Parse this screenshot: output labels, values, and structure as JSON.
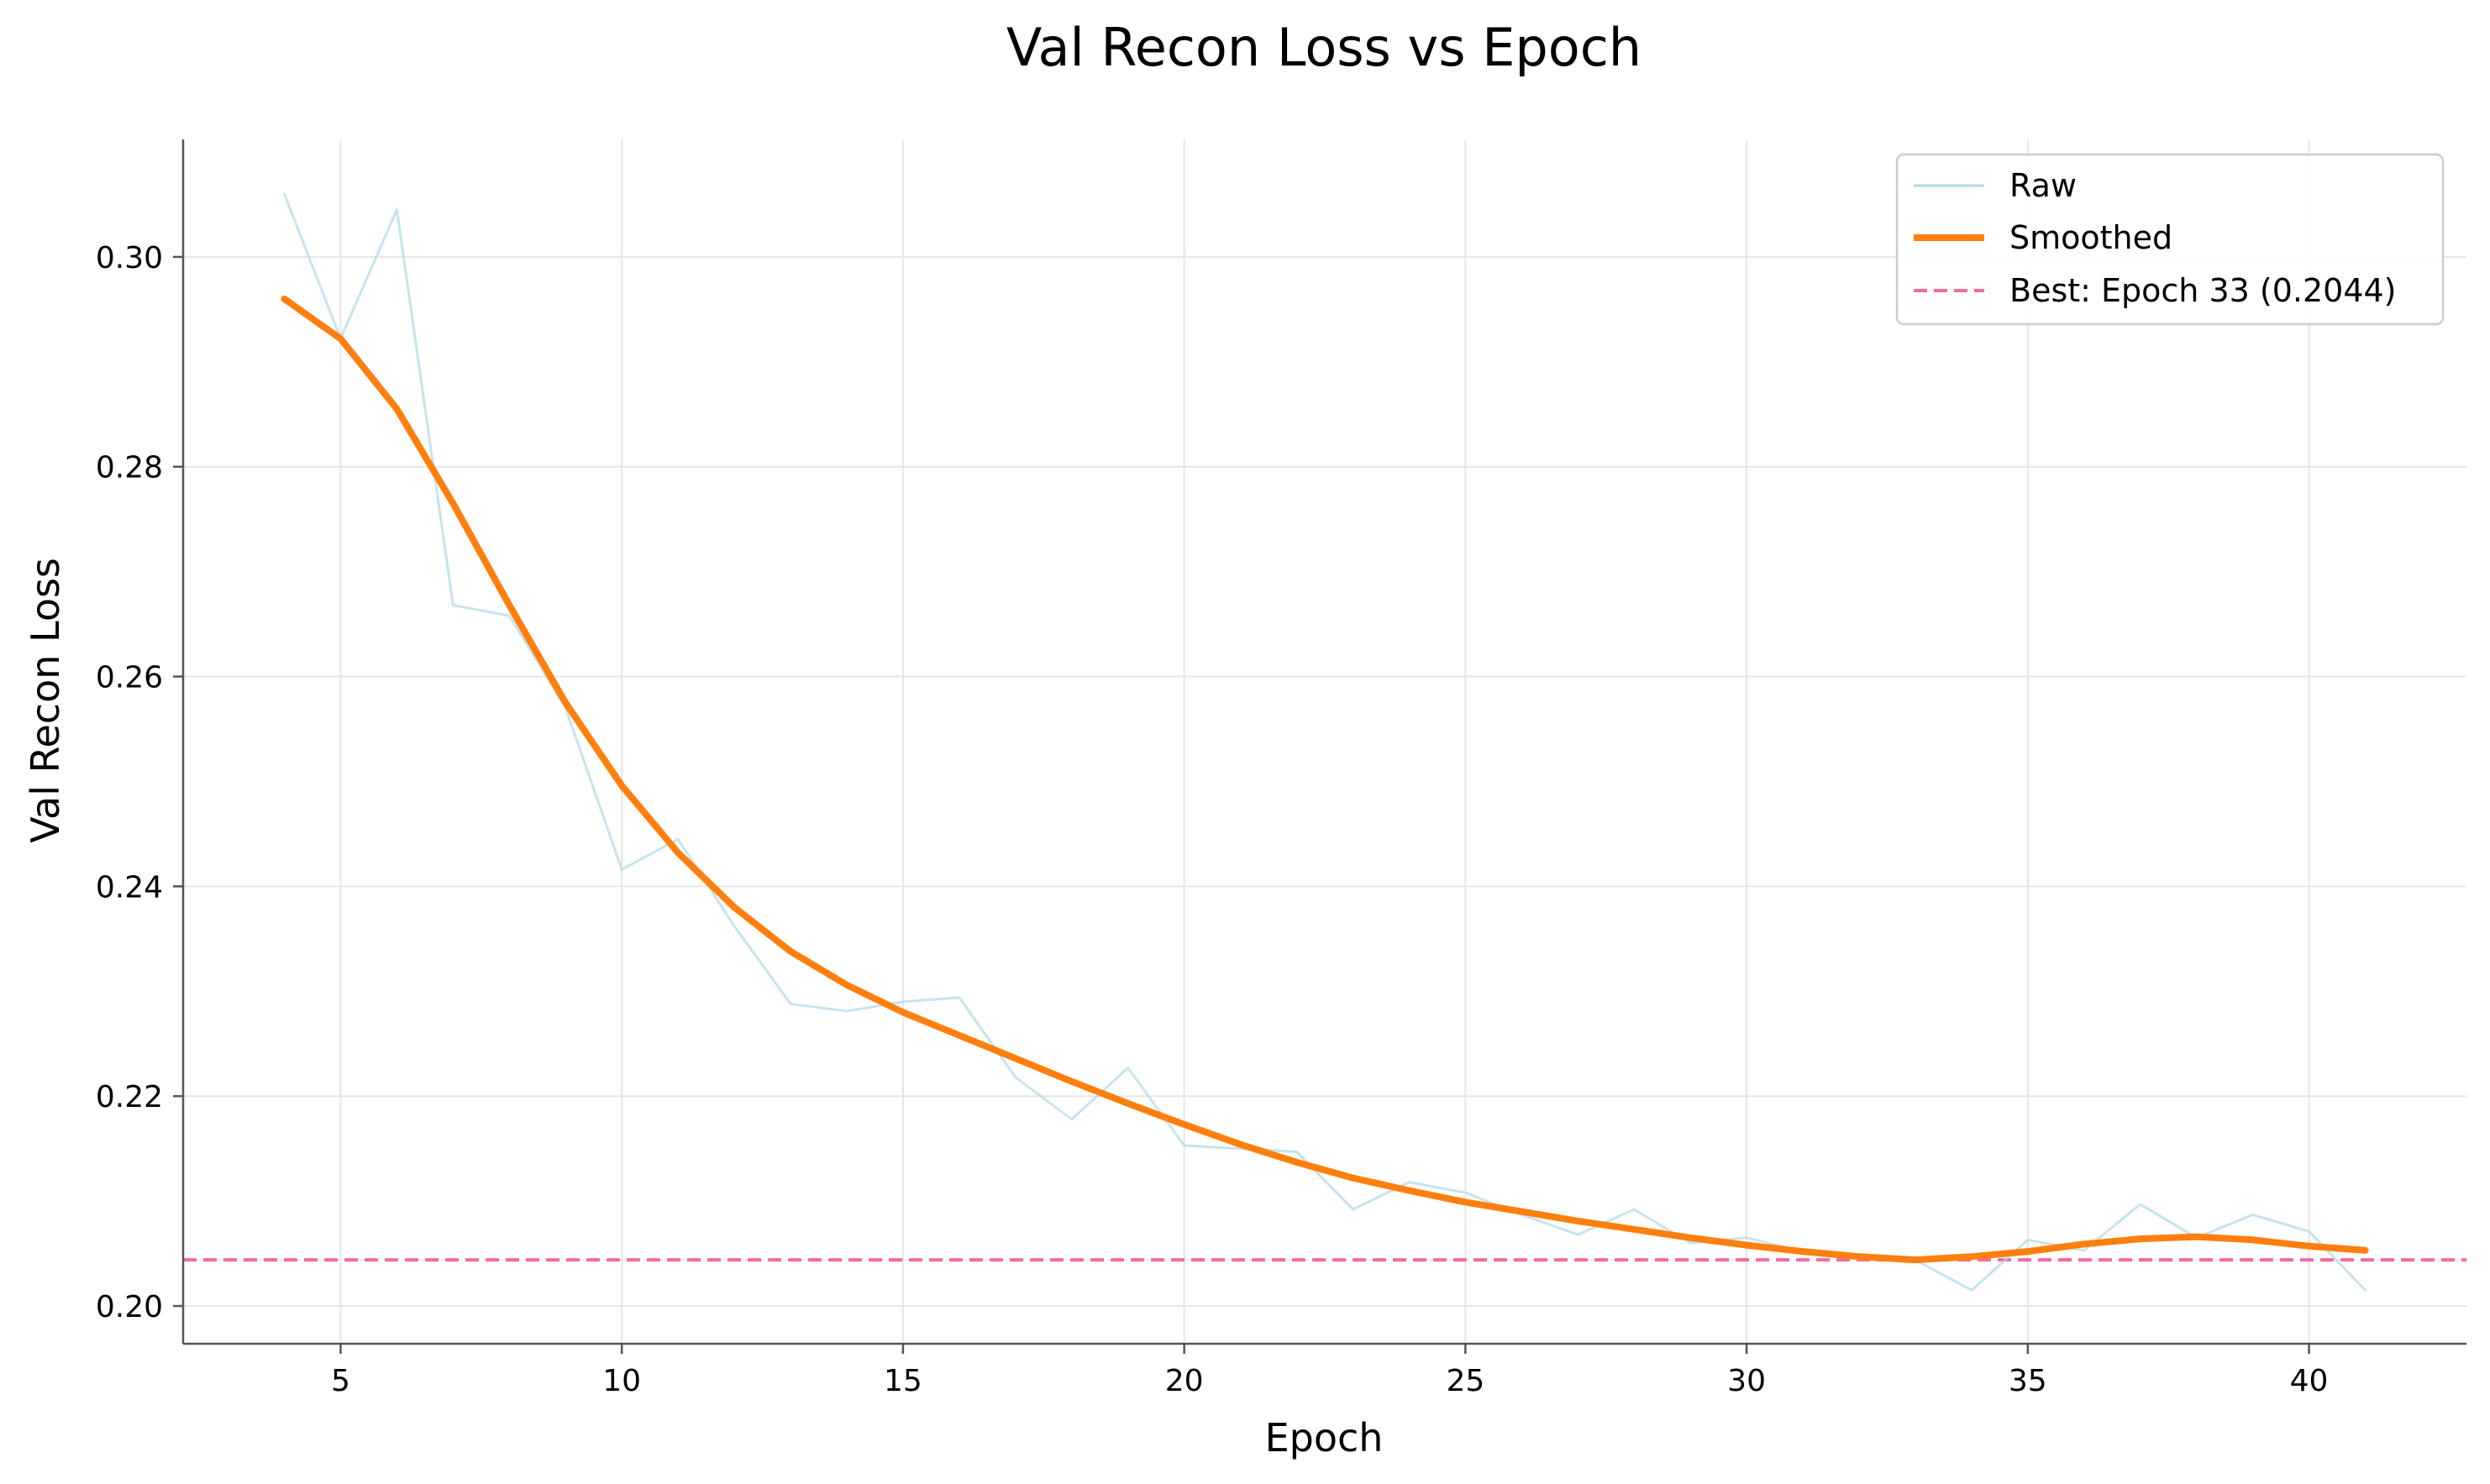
{
  "chart_data": {
    "type": "line",
    "title": "Val Recon Loss vs Epoch",
    "xlabel": "Epoch",
    "ylabel": "Val Recon Loss",
    "xlim": [
      2.2,
      42.8
    ],
    "ylim": [
      0.1964,
      0.3112
    ],
    "xticks": [
      5,
      10,
      15,
      20,
      25,
      30,
      35,
      40
    ],
    "yticks": [
      0.2,
      0.22,
      0.24,
      0.26,
      0.28,
      0.3
    ],
    "ytick_labels": [
      "0.20",
      "0.22",
      "0.24",
      "0.26",
      "0.28",
      "0.30"
    ],
    "grid": true,
    "legend_position": "top-right",
    "series": [
      {
        "name": "Raw",
        "color": "#add8e6",
        "x": [
          4,
          5,
          6,
          7,
          8,
          9,
          10,
          11,
          12,
          13,
          14,
          15,
          16,
          17,
          18,
          19,
          20,
          21,
          22,
          23,
          24,
          25,
          26,
          27,
          28,
          29,
          30,
          31,
          32,
          33,
          34,
          35,
          36,
          37,
          38,
          39,
          40,
          41
        ],
        "values": [
          0.306,
          0.2922,
          0.3045,
          0.2668,
          0.2658,
          0.257,
          0.2416,
          0.2445,
          0.2362,
          0.2288,
          0.2281,
          0.229,
          0.2294,
          0.2218,
          0.2178,
          0.2227,
          0.2153,
          0.215,
          0.2147,
          0.2092,
          0.2118,
          0.2108,
          0.2087,
          0.2068,
          0.2092,
          0.206,
          0.2065,
          0.2052,
          0.2045,
          0.2044,
          0.2015,
          0.2063,
          0.2053,
          0.2097,
          0.2065,
          0.2087,
          0.2071,
          0.2015
        ]
      },
      {
        "name": "Smoothed",
        "color": "#ff7f0e",
        "x": [
          4,
          5,
          6,
          7,
          8,
          9,
          10,
          11,
          12,
          13,
          14,
          15,
          16,
          17,
          18,
          19,
          20,
          21,
          22,
          23,
          24,
          25,
          26,
          27,
          28,
          29,
          30,
          31,
          32,
          33,
          34,
          35,
          36,
          37,
          38,
          39,
          40,
          41
        ],
        "values": [
          0.296,
          0.2922,
          0.2855,
          0.2765,
          0.2668,
          0.2575,
          0.2496,
          0.2432,
          0.238,
          0.2338,
          0.2306,
          0.228,
          0.2258,
          0.2236,
          0.2214,
          0.2193,
          0.2173,
          0.2154,
          0.2137,
          0.2122,
          0.211,
          0.2099,
          0.209,
          0.2081,
          0.2073,
          0.2065,
          0.2058,
          0.2052,
          0.2047,
          0.2044,
          0.2047,
          0.2052,
          0.2059,
          0.2064,
          0.2066,
          0.2063,
          0.2057,
          0.2053
        ]
      }
    ],
    "reference_line": {
      "name": "Best: Epoch 33 (0.2044)",
      "y": 0.2044,
      "color": "#f768a1",
      "style": "dashed"
    }
  }
}
